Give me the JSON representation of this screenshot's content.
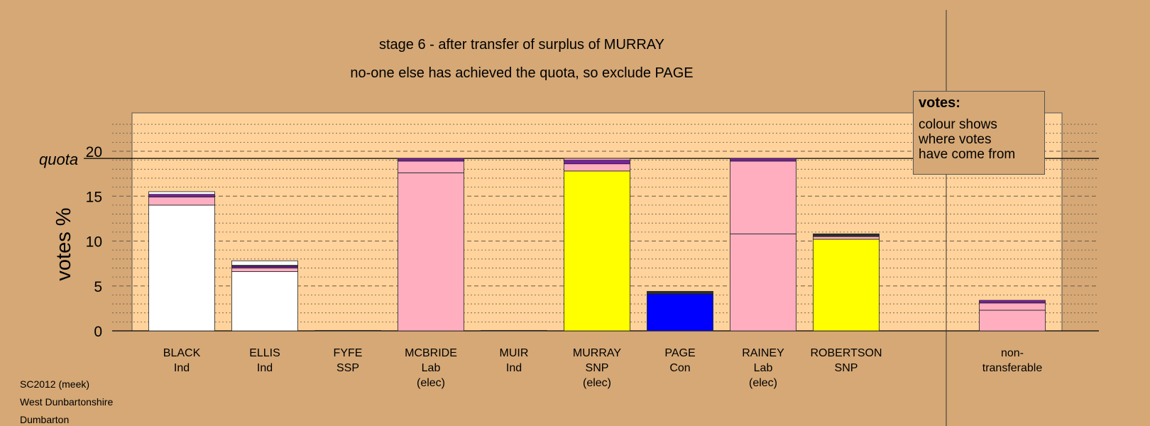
{
  "header": {
    "title": "stage 6 - after transfer of surplus of MURRAY",
    "subtitle": "no-one else has achieved the quota, so exclude PAGE"
  },
  "legend": {
    "heading": "votes:",
    "body": "colour shows\nwhere votes\nhave come from"
  },
  "footer": {
    "line1": "SC2012 (meek)",
    "line2": "West Dunbartonshire",
    "line3": "Dumbarton"
  },
  "chart_data": {
    "type": "bar",
    "stacked": true,
    "ylabel": "votes %",
    "ylim": [
      0,
      24
    ],
    "yticks": [
      0,
      5,
      10,
      15,
      20
    ],
    "quota": 19.2,
    "quota_label": "quota",
    "grid": "dashed at ticks, dotted at minor steps",
    "categories": [
      {
        "name": "BLACK",
        "party": "Ind",
        "status": ""
      },
      {
        "name": "ELLIS",
        "party": "Ind",
        "status": ""
      },
      {
        "name": "FYFE",
        "party": "SSP",
        "status": ""
      },
      {
        "name": "MCBRIDE",
        "party": "Lab",
        "status": "(elec)"
      },
      {
        "name": "MUIR",
        "party": "Ind",
        "status": ""
      },
      {
        "name": "MURRAY",
        "party": "SNP",
        "status": "(elec)"
      },
      {
        "name": "PAGE",
        "party": "Con",
        "status": ""
      },
      {
        "name": "RAINEY",
        "party": "Lab",
        "status": "(elec)"
      },
      {
        "name": "ROBERTSON",
        "party": "SNP",
        "status": ""
      }
    ],
    "nontransferable_label": "non-\ntransferable",
    "colors": {
      "Ind": "#ffffff",
      "Lab": "#ffaec0",
      "SNP": "#ffff00",
      "Con": "#0000ff",
      "SSP": "#ff8c00",
      "other": "#7b1fa2",
      "dark": "#2e2e2e",
      "background": "#d5a876",
      "plot_area": "#ffd39b"
    },
    "bars": [
      [
        {
          "c": "Ind",
          "v": 14.0
        },
        {
          "c": "Lab",
          "v": 0.9
        },
        {
          "c": "other",
          "v": 0.3
        },
        {
          "c": "Ind",
          "v": 0.3
        }
      ],
      [
        {
          "c": "Ind",
          "v": 6.6
        },
        {
          "c": "Lab",
          "v": 0.4
        },
        {
          "c": "other",
          "v": 0.2
        },
        {
          "c": "dark",
          "v": 0.1
        },
        {
          "c": "Ind",
          "v": 0.5
        }
      ],
      [
        {
          "c": "dark",
          "v": 0.05
        }
      ],
      [
        {
          "c": "Lab",
          "v": 17.6
        },
        {
          "c": "Lab",
          "v": 1.3
        },
        {
          "c": "other",
          "v": 0.3
        }
      ],
      [
        {
          "c": "dark",
          "v": 0.05
        }
      ],
      [
        {
          "c": "SNP",
          "v": 17.8
        },
        {
          "c": "Lab",
          "v": 0.8
        },
        {
          "c": "other",
          "v": 0.4
        },
        {
          "c": "Lab",
          "v": 0.2
        }
      ],
      [
        {
          "c": "Con",
          "v": 4.1
        },
        {
          "c": "dark",
          "v": 0.3
        }
      ],
      [
        {
          "c": "Lab",
          "v": 10.8
        },
        {
          "c": "Lab",
          "v": 8.1
        },
        {
          "c": "other",
          "v": 0.3
        }
      ],
      [
        {
          "c": "SNP",
          "v": 10.2
        },
        {
          "c": "Lab",
          "v": 0.3
        },
        {
          "c": "dark",
          "v": 0.3
        }
      ]
    ],
    "nontransferable": [
      {
        "c": "Lab",
        "v": 2.3
      },
      {
        "c": "Lab",
        "v": 0.8
      },
      {
        "c": "other",
        "v": 0.3
      }
    ]
  }
}
